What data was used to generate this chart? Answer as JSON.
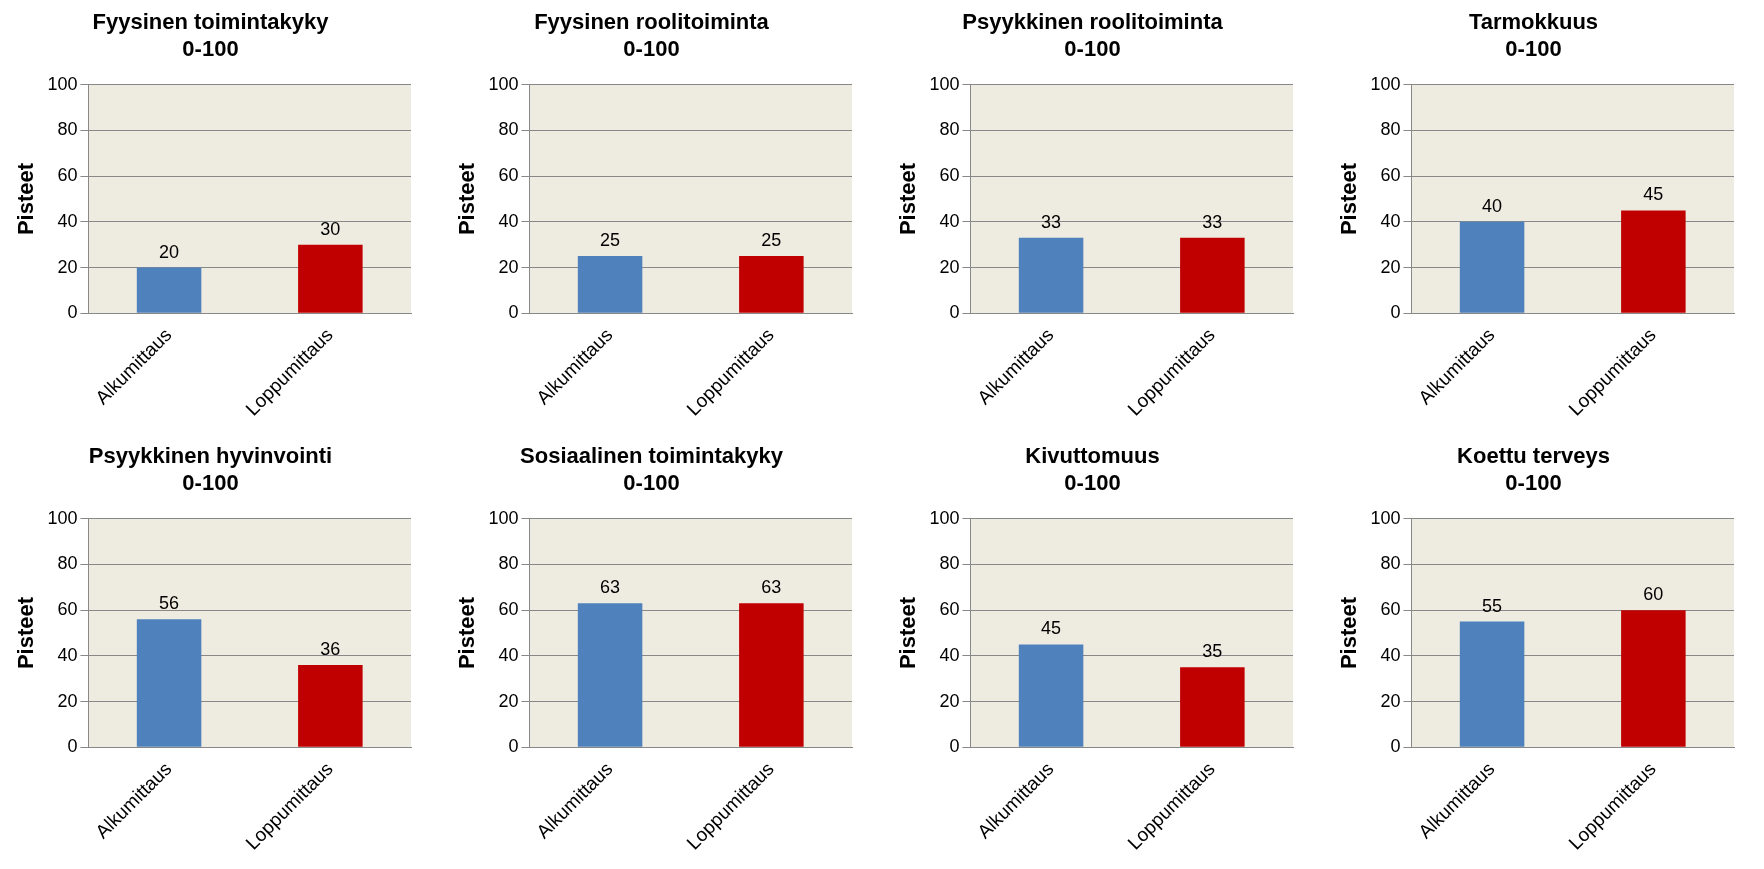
{
  "chart_data": [
    {
      "type": "bar",
      "title": "Fyysinen toimintakyky",
      "subtitle": "0-100",
      "ylabel": "Pisteet",
      "categories": [
        "Alkumittaus",
        "Loppumittaus"
      ],
      "values": [
        20,
        30
      ],
      "colors": [
        "#4f81bd",
        "#c00000"
      ],
      "ylim": [
        0,
        100
      ],
      "yticks": [
        0,
        20,
        40,
        60,
        80,
        100
      ],
      "grid": "y",
      "data_labels": true,
      "legend": false
    },
    {
      "type": "bar",
      "title": "Fyysinen roolitoiminta",
      "subtitle": "0-100",
      "ylabel": "Pisteet",
      "categories": [
        "Alkumittaus",
        "Loppumittaus"
      ],
      "values": [
        25,
        25
      ],
      "colors": [
        "#4f81bd",
        "#c00000"
      ],
      "ylim": [
        0,
        100
      ],
      "yticks": [
        0,
        20,
        40,
        60,
        80,
        100
      ],
      "grid": "y",
      "data_labels": true,
      "legend": false
    },
    {
      "type": "bar",
      "title": "Psyykkinen roolitoiminta",
      "subtitle": "0-100",
      "ylabel": "Pisteet",
      "categories": [
        "Alkumittaus",
        "Loppumittaus"
      ],
      "values": [
        33,
        33
      ],
      "colors": [
        "#4f81bd",
        "#c00000"
      ],
      "ylim": [
        0,
        100
      ],
      "yticks": [
        0,
        20,
        40,
        60,
        80,
        100
      ],
      "grid": "y",
      "data_labels": true,
      "legend": false
    },
    {
      "type": "bar",
      "title": "Tarmokkuus",
      "subtitle": "0-100",
      "ylabel": "Pisteet",
      "categories": [
        "Alkumittaus",
        "Loppumittaus"
      ],
      "values": [
        40,
        45
      ],
      "colors": [
        "#4f81bd",
        "#c00000"
      ],
      "ylim": [
        0,
        100
      ],
      "yticks": [
        0,
        20,
        40,
        60,
        80,
        100
      ],
      "grid": "y",
      "data_labels": true,
      "legend": false
    },
    {
      "type": "bar",
      "title": "Psyykkinen hyvinvointi",
      "subtitle": "0-100",
      "ylabel": "Pisteet",
      "categories": [
        "Alkumittaus",
        "Loppumittaus"
      ],
      "values": [
        56,
        36
      ],
      "colors": [
        "#4f81bd",
        "#c00000"
      ],
      "ylim": [
        0,
        100
      ],
      "yticks": [
        0,
        20,
        40,
        60,
        80,
        100
      ],
      "grid": "y",
      "data_labels": true,
      "legend": false
    },
    {
      "type": "bar",
      "title": "Sosiaalinen toimintakyky",
      "subtitle": "0-100",
      "ylabel": "Pisteet",
      "categories": [
        "Alkumittaus",
        "Loppumittaus"
      ],
      "values": [
        63,
        63
      ],
      "colors": [
        "#4f81bd",
        "#c00000"
      ],
      "ylim": [
        0,
        100
      ],
      "yticks": [
        0,
        20,
        40,
        60,
        80,
        100
      ],
      "grid": "y",
      "data_labels": true,
      "legend": false
    },
    {
      "type": "bar",
      "title": "Kivuttomuus",
      "subtitle": "0-100",
      "ylabel": "Pisteet",
      "categories": [
        "Alkumittaus",
        "Loppumittaus"
      ],
      "values": [
        45,
        35
      ],
      "colors": [
        "#4f81bd",
        "#c00000"
      ],
      "ylim": [
        0,
        100
      ],
      "yticks": [
        0,
        20,
        40,
        60,
        80,
        100
      ],
      "grid": "y",
      "data_labels": true,
      "legend": false
    },
    {
      "type": "bar",
      "title": "Koettu terveys",
      "subtitle": "0-100",
      "ylabel": "Pisteet",
      "categories": [
        "Alkumittaus",
        "Loppumittaus"
      ],
      "values": [
        55,
        60
      ],
      "colors": [
        "#4f81bd",
        "#c00000"
      ],
      "ylim": [
        0,
        100
      ],
      "yticks": [
        0,
        20,
        40,
        60,
        80,
        100
      ],
      "grid": "y",
      "data_labels": true,
      "legend": false
    }
  ]
}
